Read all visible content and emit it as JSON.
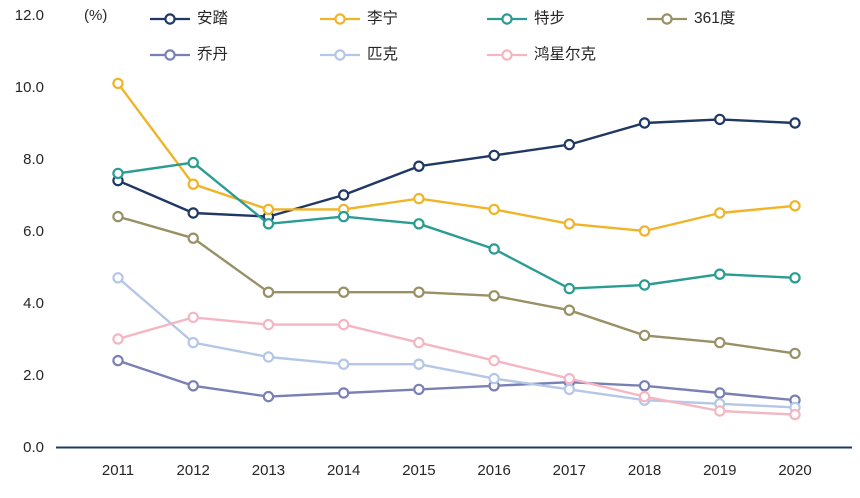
{
  "chart_data": {
    "type": "line",
    "title": "",
    "unit_label": "(%)",
    "categories": [
      "2011",
      "2012",
      "2013",
      "2014",
      "2015",
      "2016",
      "2017",
      "2018",
      "2019",
      "2020"
    ],
    "xlabel": "",
    "ylabel": "(%)",
    "ylim": [
      0,
      12
    ],
    "yticks": [
      0,
      2,
      4,
      6,
      8,
      10,
      12
    ],
    "ytick_decimals": 1,
    "grid": false,
    "legend_position": "top",
    "axis_color": "#1f3864",
    "tick_text_color": "#262626",
    "marker_style": "open-circle",
    "series": [
      {
        "name": "安踏",
        "color": "#1f3864",
        "values": [
          7.4,
          6.5,
          6.4,
          7.0,
          7.8,
          8.1,
          8.4,
          9.0,
          9.1,
          9.0
        ]
      },
      {
        "name": "李宁",
        "color": "#f0b429",
        "values": [
          10.1,
          7.3,
          6.6,
          6.6,
          6.9,
          6.6,
          6.2,
          6.0,
          6.5,
          6.7
        ]
      },
      {
        "name": "特步",
        "color": "#2b9c92",
        "values": [
          7.6,
          7.9,
          6.2,
          6.4,
          6.2,
          5.5,
          4.4,
          4.5,
          4.8,
          4.7
        ]
      },
      {
        "name": "361度",
        "color": "#999066",
        "values": [
          6.4,
          5.8,
          4.3,
          4.3,
          4.3,
          4.2,
          3.8,
          3.1,
          2.9,
          2.6
        ]
      },
      {
        "name": "乔丹",
        "color": "#7b80b4",
        "values": [
          2.4,
          1.7,
          1.4,
          1.5,
          1.6,
          1.7,
          1.8,
          1.7,
          1.5,
          1.3
        ]
      },
      {
        "name": "匹克",
        "color": "#b4c7e7",
        "values": [
          4.7,
          2.9,
          2.5,
          2.3,
          2.3,
          1.9,
          1.6,
          1.3,
          1.2,
          1.1
        ]
      },
      {
        "name": "鸿星尔克",
        "color": "#f4b6c2",
        "values": [
          3.0,
          3.6,
          3.4,
          3.4,
          2.9,
          2.4,
          1.9,
          1.4,
          1.0,
          0.9
        ]
      }
    ]
  }
}
